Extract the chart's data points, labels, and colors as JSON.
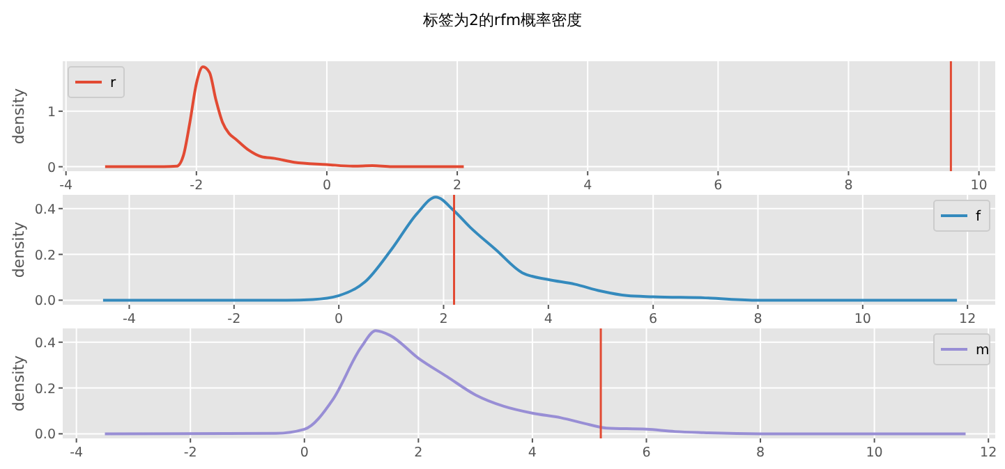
{
  "chart_data": [
    {
      "type": "line",
      "title": "标签为2的rfm概率密度",
      "ylabel": "density",
      "xlim": [
        -4.05,
        10.25
      ],
      "xticks": [
        -4,
        -2,
        0,
        2,
        4,
        6,
        8,
        10
      ],
      "ylim": [
        -0.08,
        1.9
      ],
      "yticks": [
        0,
        1
      ],
      "grid": true,
      "legend": "top left",
      "ref_lines": [
        {
          "axis": "x",
          "value": 9.57,
          "color": "#e24a33"
        }
      ],
      "series": [
        {
          "name": "r",
          "color": "#e24a33",
          "x": [
            -3.4,
            -2.5,
            -2.3,
            -2.2,
            -2.1,
            -2.0,
            -1.9,
            -1.8,
            -1.7,
            -1.6,
            -1.5,
            -1.4,
            -1.2,
            -1.0,
            -0.8,
            -0.5,
            0,
            0.4,
            0.7,
            1.0,
            2.1
          ],
          "values": [
            0,
            0,
            0.01,
            0.2,
            0.8,
            1.5,
            1.8,
            1.7,
            1.2,
            0.8,
            0.6,
            0.5,
            0.3,
            0.18,
            0.15,
            0.08,
            0.04,
            0.01,
            0.02,
            0,
            0
          ]
        }
      ]
    },
    {
      "type": "line",
      "ylabel": "density",
      "xlim": [
        -5.27,
        12.53
      ],
      "xticks": [
        -4,
        -2,
        0,
        2,
        4,
        6,
        8,
        10,
        12
      ],
      "ylim": [
        -0.02,
        0.46
      ],
      "yticks": [
        {
          "value": 0,
          "label": "0.0"
        },
        {
          "value": 0.2,
          "label": "0.2"
        },
        {
          "value": 0.4,
          "label": "0.4"
        }
      ],
      "grid": true,
      "legend": "top right",
      "ref_lines": [
        {
          "axis": "x",
          "value": 2.2,
          "color": "#e24a33"
        }
      ],
      "series": [
        {
          "name": "f",
          "color": "#348abd",
          "x": [
            -4.5,
            -1,
            -0.5,
            0,
            0.5,
            1.0,
            1.5,
            1.85,
            2.2,
            2.5,
            3,
            3.5,
            4,
            4.5,
            5,
            5.5,
            6,
            7,
            8,
            11.8
          ],
          "values": [
            0,
            0,
            0.003,
            0.02,
            0.08,
            0.22,
            0.38,
            0.45,
            0.39,
            0.32,
            0.22,
            0.12,
            0.09,
            0.07,
            0.04,
            0.02,
            0.015,
            0.01,
            0,
            0
          ]
        }
      ]
    },
    {
      "type": "line",
      "ylabel": "density",
      "xlim": [
        -4.24,
        12.12
      ],
      "xticks": [
        -4,
        -2,
        0,
        2,
        4,
        6,
        8,
        10,
        12
      ],
      "ylim": [
        -0.02,
        0.46
      ],
      "yticks": [
        {
          "value": 0,
          "label": "0.0"
        },
        {
          "value": 0.2,
          "label": "0.2"
        },
        {
          "value": 0.4,
          "label": "0.4"
        }
      ],
      "grid": true,
      "legend": "top right",
      "ref_lines": [
        {
          "axis": "x",
          "value": 5.2,
          "color": "#e24a33"
        }
      ],
      "series": [
        {
          "name": "m",
          "color": "#988ed5",
          "x": [
            -3.5,
            -0.5,
            0,
            0.5,
            1,
            1.25,
            1.5,
            2,
            2.5,
            3,
            3.5,
            4,
            4.5,
            5,
            5.3,
            6,
            6.5,
            7,
            8,
            11.6
          ],
          "values": [
            0,
            0.002,
            0.02,
            0.15,
            0.38,
            0.45,
            0.43,
            0.33,
            0.25,
            0.17,
            0.12,
            0.09,
            0.07,
            0.04,
            0.025,
            0.02,
            0.01,
            0.005,
            0,
            0
          ]
        }
      ]
    }
  ]
}
